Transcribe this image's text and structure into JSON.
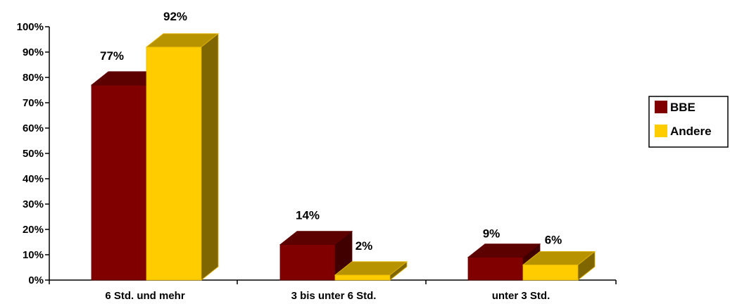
{
  "chart_data": {
    "type": "bar",
    "title": "",
    "xlabel": "",
    "ylabel": "",
    "categories": [
      "6 Std. und mehr",
      "3 bis unter 6 Std.",
      "unter 3 Std."
    ],
    "series": [
      {
        "name": "BBE",
        "values": [
          77,
          14,
          9
        ],
        "labels": [
          "77%",
          "14%",
          "9%"
        ],
        "color": "#800000"
      },
      {
        "name": "Andere",
        "values": [
          92,
          2,
          6
        ],
        "labels": [
          "92%",
          "2%",
          "6%"
        ],
        "color": "#FFCC00"
      }
    ],
    "ylim": [
      0,
      100
    ],
    "yticks": [
      "0%",
      "10%",
      "20%",
      "30%",
      "40%",
      "50%",
      "60%",
      "70%",
      "80%",
      "90%",
      "100%"
    ],
    "grid": false,
    "legend_position": "right",
    "style": "3d-bar"
  }
}
